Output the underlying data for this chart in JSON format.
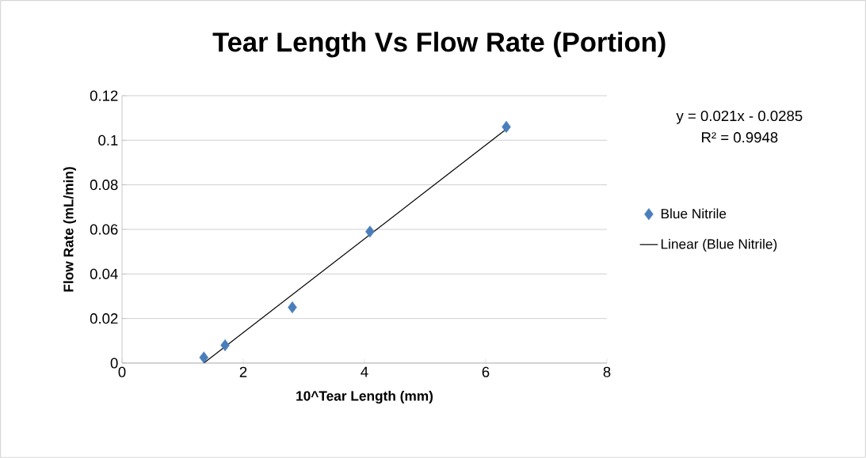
{
  "chart_data": {
    "type": "scatter",
    "title": "Tear Length Vs Flow Rate (Portion)",
    "xlabel": "10^Tear Length (mm)",
    "ylabel": "Flow Rate (mL/min)",
    "series": [
      {
        "name": "Blue Nitrile",
        "type": "scatter",
        "color": "#4a7ebb",
        "marker": "diamond",
        "x": [
          1.35,
          1.7,
          2.81,
          4.09,
          6.34
        ],
        "values": [
          0.0025,
          0.008,
          0.025,
          0.059,
          0.106
        ]
      },
      {
        "name": "Linear (Blue Nitrile)",
        "type": "line",
        "color": "#000000",
        "marker": "none",
        "x": [
          1.35,
          6.34
        ],
        "values": [
          0.0,
          0.105
        ]
      }
    ],
    "xlim": [
      0,
      8
    ],
    "xticks": [
      0,
      2,
      4,
      6,
      8
    ],
    "ylim": [
      0,
      0.12
    ],
    "yticks": [
      0,
      0.02,
      0.04,
      0.06,
      0.08,
      0.1,
      0.12
    ],
    "grid": "y",
    "legend": "right",
    "annotations": [
      "y = 0.021x - 0.0285",
      "R² = 0.9948"
    ]
  }
}
